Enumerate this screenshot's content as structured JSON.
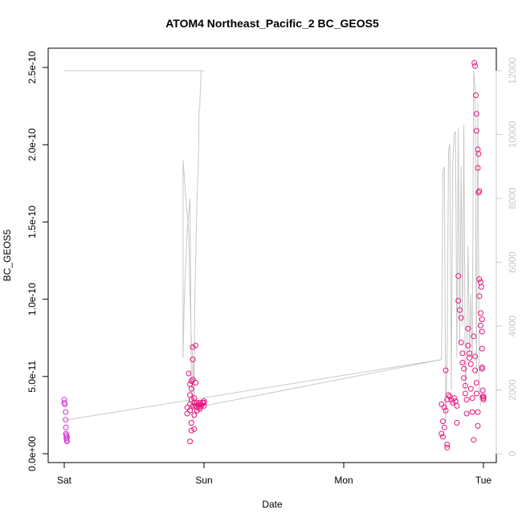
{
  "chart_data": {
    "type": "scatter",
    "title": "ATOM4 Northeast_Pacific_2 BC_GEOS5",
    "xlabel": "Date",
    "ylabel": "BC_GEOS5",
    "x_ticks": [
      "Sat",
      "Sun",
      "Mon",
      "Tue"
    ],
    "xlim_days": [
      -0.06,
      3.1
    ],
    "ylim": [
      0,
      2.55e-10
    ],
    "y_ticks": [
      0,
      5e-11,
      1e-10,
      1.5e-10,
      2e-10,
      2.5e-10
    ],
    "y_tick_labels": [
      "0.0e+00",
      "5.0e-11",
      "1.0e-10",
      "1.5e-10",
      "2.0e-10",
      "2.5e-10"
    ],
    "y2lim": [
      0,
      12300
    ],
    "y2_ticks": [
      0,
      2000,
      4000,
      6000,
      8000,
      10000,
      12000
    ],
    "y2_tick_labels": [
      "0",
      "2000",
      "4000",
      "6000",
      "8000",
      "10000",
      "12000"
    ],
    "colors": {
      "points": "#e8157f",
      "points_start": "#d42fd0",
      "altitude_line": "#c8c8c8"
    },
    "series": [
      {
        "kind": "altitude-line",
        "x": [
          0.0,
          0.008,
          0.015,
          0.5,
          0.99,
          1.0,
          0.98,
          0.97,
          0.97,
          0.965,
          0.96,
          0.95,
          0.945,
          0.94,
          0.935,
          0.93,
          0.92,
          0.91,
          0.9,
          0.89,
          0.88,
          0.87,
          0.86,
          0.85,
          0.85,
          0.87,
          0.89,
          0.9,
          0.91,
          0.92,
          0.92,
          0.93,
          0.93,
          0.94,
          0.95,
          0.96,
          0.97,
          0.99,
          1.0,
          2.7,
          2.71,
          2.72,
          2.73,
          2.74,
          2.75,
          2.76,
          2.77,
          2.78,
          2.79,
          2.8,
          2.81,
          2.82,
          2.83,
          2.84,
          2.85,
          2.86,
          2.87,
          2.88,
          2.89,
          2.9,
          2.91,
          2.92,
          2.93,
          2.94,
          2.95,
          2.96,
          2.97,
          2.98
        ],
        "y": [
          12000,
          12000,
          12000,
          12000,
          12000,
          12000,
          12000,
          11000,
          10800,
          10800,
          9000,
          8000,
          7000,
          6000,
          5000,
          3000,
          1000,
          2000,
          8000,
          7500,
          7000,
          6000,
          5000,
          3000,
          9200,
          8000,
          7000,
          5000,
          3500,
          3000,
          2000,
          3000,
          1500,
          1200,
          1400,
          1600,
          1500,
          1500,
          1500,
          2950,
          8800,
          9000,
          1000,
          3000,
          9500,
          9700,
          2000,
          9000,
          10000,
          10100,
          3000,
          10200,
          3500,
          9000,
          4000,
          10300,
          2000,
          3000,
          6500,
          3000,
          5000,
          3000,
          12000,
          11500,
          2500,
          11000,
          2000,
          1500
        ]
      },
      {
        "kind": "ground-line",
        "x": [
          0.0,
          2.7
        ],
        "y": [
          1050,
          2950
        ]
      },
      {
        "kind": "points",
        "x": [
          0.0,
          0.0,
          0.005,
          0.01,
          0.01,
          0.012,
          0.012,
          0.015,
          0.015,
          0.018,
          0.02,
          0.02,
          0.88,
          0.88,
          0.89,
          0.9,
          0.9,
          0.9,
          0.9,
          0.9,
          0.91,
          0.91,
          0.91,
          0.91,
          0.91,
          0.92,
          0.92,
          0.92,
          0.92,
          0.93,
          0.93,
          0.93,
          0.93,
          0.94,
          0.94,
          0.94,
          0.95,
          0.95,
          0.95,
          0.96,
          0.96,
          0.97,
          0.97,
          0.97,
          0.98,
          0.98,
          0.99,
          1.0,
          1.0,
          1.0,
          2.7,
          2.7,
          2.71,
          2.71,
          2.72,
          2.72,
          2.73,
          2.73,
          2.74,
          2.74,
          2.74,
          2.75,
          2.76,
          2.77,
          2.78,
          2.79,
          2.8,
          2.81,
          2.81,
          2.82,
          2.82,
          2.83,
          2.84,
          2.84,
          2.85,
          2.85,
          2.86,
          2.86,
          2.87,
          2.87,
          2.88,
          2.88,
          2.89,
          2.89,
          2.9,
          2.9,
          2.91,
          2.91,
          2.92,
          2.92,
          2.93,
          2.93,
          2.94,
          2.94,
          2.95,
          2.95,
          2.96,
          2.96,
          2.97,
          2.97,
          2.98,
          2.98,
          2.99,
          2.99,
          2.99,
          2.995,
          3.0,
          3.0
        ],
        "y": [
          3.5e-11,
          3.3e-11,
          3.2e-11,
          2.7e-11,
          2.2e-11,
          1.7e-11,
          1.3e-11,
          1.2e-11,
          1e-11,
          9e-12,
          1.1e-11,
          8e-12,
          3e-11,
          2.6e-11,
          5.2e-11,
          4.5e-11,
          3.8e-11,
          3.2e-11,
          2.8e-11,
          8e-12,
          4.7e-11,
          4.2e-11,
          3.5e-11,
          2e-11,
          1.5e-11,
          6.9e-11,
          6.1e-11,
          4.8e-11,
          3.1e-11,
          3.6e-11,
          3.3e-11,
          2.5e-11,
          1.6e-11,
          7e-11,
          4.6e-11,
          3.1e-11,
          3.3e-11,
          3e-11,
          2.8e-11,
          3.2e-11,
          3.1e-11,
          3.3e-11,
          3e-11,
          2.9e-11,
          3.2e-11,
          3.1e-11,
          3.3e-11,
          3.4e-11,
          3.3e-11,
          3.1e-11,
          3.2e-11,
          1.3e-11,
          1.1e-11,
          2.1e-11,
          3e-11,
          1.7e-11,
          5.4e-11,
          2.8e-11,
          6e-12,
          4e-12,
          3.5e-11,
          3.8e-11,
          3.7e-11,
          3.5e-11,
          3.3e-11,
          3.6e-11,
          3.4e-11,
          3.1e-11,
          2e-11,
          1.15e-10,
          9.9e-11,
          9.3e-11,
          8.8e-11,
          7.2e-11,
          6.5e-11,
          5.9e-11,
          5.5e-11,
          4.9e-11,
          4.4e-11,
          3.9e-11,
          3.5e-11,
          2.6e-11,
          8.1e-11,
          7e-11,
          6.5e-11,
          6.2e-11,
          5.8e-11,
          4.2e-11,
          3.6e-11,
          2.7e-11,
          9e-12,
          7.6e-11,
          6.3e-11,
          5.4e-11,
          4.6e-11,
          3.9e-11,
          2.7e-11,
          1.8e-11,
          1.13e-10,
          1.02e-10,
          9.1e-11,
          8.3e-11,
          7.9e-11,
          6.8e-11,
          5.6e-11,
          4.1e-11,
          3.7e-11,
          3.6e-11
        ]
      },
      {
        "kind": "points-high",
        "x": [
          2.935,
          2.94,
          2.945,
          2.95,
          2.95,
          2.96,
          2.965,
          2.96,
          2.97,
          2.965,
          2.98,
          2.985,
          2.99,
          2.99,
          2.995,
          3.0
        ],
        "y": [
          2.53e-10,
          2.51e-10,
          2.32e-10,
          2.2e-10,
          2.09e-10,
          1.97e-10,
          1.94e-10,
          1.85e-10,
          1.7e-10,
          1.69e-10,
          1.11e-10,
          1.08e-10,
          8.7e-11,
          5.5e-11,
          3.7e-11,
          3.5e-11
        ]
      }
    ]
  }
}
